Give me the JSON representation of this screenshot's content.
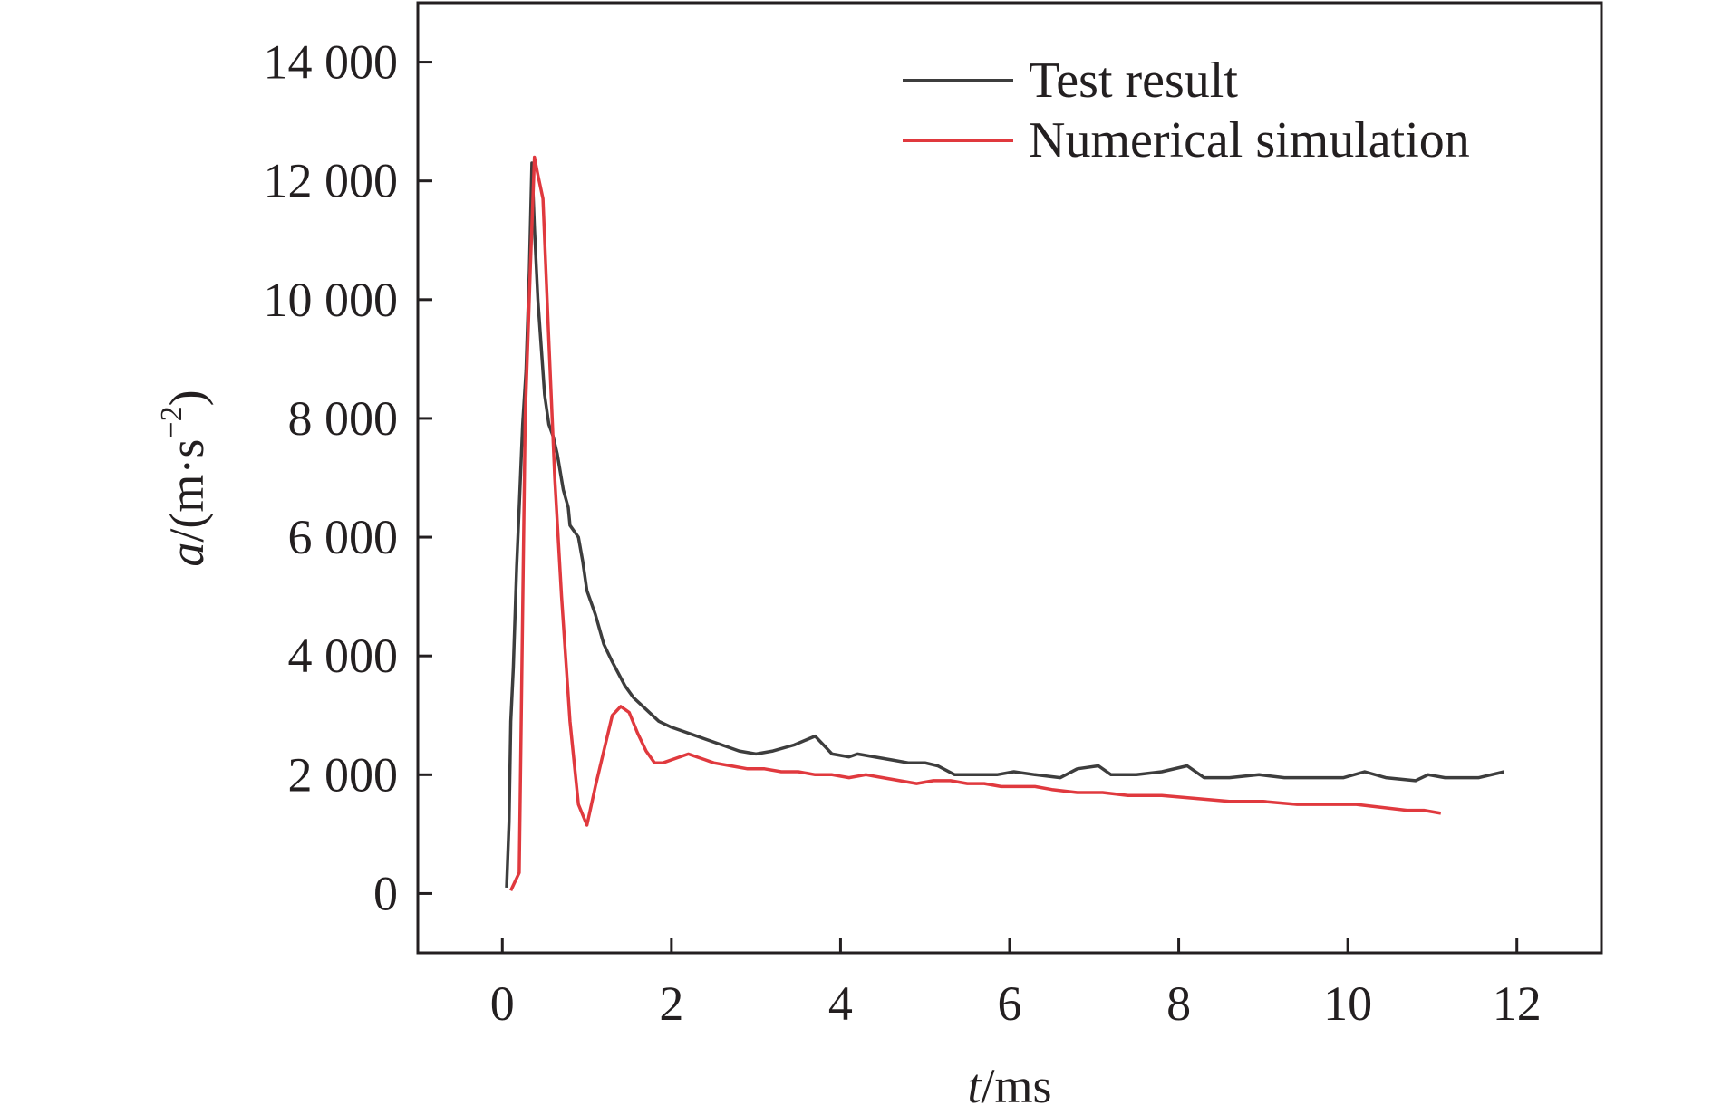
{
  "chart_data": {
    "type": "line",
    "xlabel_italic": "t",
    "xlabel_unit": "/ms",
    "ylabel_italic": "a",
    "ylabel_unit": "/(m·s",
    "ylabel_exp": "−2",
    "ylabel_close": ")",
    "xlim": [
      -1,
      13
    ],
    "ylim": [
      -1000,
      15000
    ],
    "xticks": [
      0,
      2,
      4,
      6,
      8,
      10,
      12
    ],
    "xtick_labels": [
      "0",
      "2",
      "4",
      "6",
      "8",
      "10",
      "12"
    ],
    "yticks": [
      0,
      2000,
      4000,
      6000,
      8000,
      10000,
      12000,
      14000
    ],
    "ytick_labels": [
      "0",
      "2 000",
      "4 000",
      "6 000",
      "8 000",
      "10 000",
      "12 000",
      "14 000"
    ],
    "grid": false,
    "legend_position": "top-right",
    "series": [
      {
        "name": "Test result",
        "color": "#3d3d3d",
        "x": [
          0.05,
          0.08,
          0.1,
          0.13,
          0.17,
          0.2,
          0.24,
          0.28,
          0.32,
          0.35,
          0.38,
          0.42,
          0.46,
          0.5,
          0.55,
          0.6,
          0.65,
          0.72,
          0.78,
          0.8,
          0.9,
          0.95,
          1.0,
          1.1,
          1.2,
          1.3,
          1.45,
          1.55,
          1.7,
          1.85,
          2.0,
          2.2,
          2.4,
          2.6,
          2.8,
          3.0,
          3.2,
          3.45,
          3.7,
          3.9,
          4.1,
          4.2,
          4.4,
          4.6,
          4.8,
          5.0,
          5.15,
          5.35,
          5.6,
          5.85,
          6.05,
          6.3,
          6.6,
          6.8,
          7.05,
          7.2,
          7.5,
          7.8,
          8.1,
          8.3,
          8.6,
          8.95,
          9.25,
          9.55,
          9.95,
          10.2,
          10.45,
          10.8,
          10.95,
          11.15,
          11.55,
          11.85
        ],
        "values": [
          100,
          1200,
          2900,
          3800,
          5500,
          6500,
          7900,
          8800,
          10500,
          12300,
          11200,
          10000,
          9200,
          8400,
          7900,
          7700,
          7400,
          6800,
          6500,
          6200,
          6000,
          5600,
          5100,
          4700,
          4200,
          3900,
          3500,
          3300,
          3100,
          2900,
          2800,
          2700,
          2600,
          2500,
          2400,
          2350,
          2400,
          2500,
          2650,
          2350,
          2300,
          2350,
          2300,
          2250,
          2200,
          2200,
          2150,
          2000,
          2000,
          2000,
          2050,
          2000,
          1950,
          2100,
          2150,
          2000,
          2000,
          2050,
          2150,
          1950,
          1950,
          2000,
          1950,
          1950,
          1950,
          2050,
          1950,
          1900,
          2000,
          1950,
          1950,
          2050
        ]
      },
      {
        "name": "Numerical simulation",
        "color": "#e0393e",
        "x": [
          0.1,
          0.2,
          0.27,
          0.33,
          0.38,
          0.42,
          0.48,
          0.55,
          0.62,
          0.7,
          0.8,
          0.9,
          1.0,
          1.1,
          1.2,
          1.3,
          1.4,
          1.5,
          1.6,
          1.7,
          1.8,
          1.9,
          2.0,
          2.1,
          2.2,
          2.3,
          2.4,
          2.5,
          2.7,
          2.9,
          3.1,
          3.3,
          3.5,
          3.7,
          3.9,
          4.1,
          4.3,
          4.5,
          4.7,
          4.9,
          5.1,
          5.3,
          5.5,
          5.7,
          5.9,
          6.1,
          6.3,
          6.5,
          6.8,
          7.1,
          7.4,
          7.8,
          8.2,
          8.6,
          9.0,
          9.4,
          9.8,
          10.1,
          10.4,
          10.7,
          10.9,
          11.1
        ],
        "values": [
          50,
          350,
          8000,
          10500,
          12400,
          12100,
          11700,
          9300,
          7000,
          5000,
          2900,
          1500,
          1150,
          1800,
          2400,
          3000,
          3150,
          3050,
          2700,
          2400,
          2200,
          2200,
          2250,
          2300,
          2350,
          2300,
          2250,
          2200,
          2150,
          2100,
          2100,
          2050,
          2050,
          2000,
          2000,
          1950,
          2000,
          1950,
          1900,
          1850,
          1900,
          1900,
          1850,
          1850,
          1800,
          1800,
          1800,
          1750,
          1700,
          1700,
          1650,
          1650,
          1600,
          1550,
          1550,
          1500,
          1500,
          1500,
          1450,
          1400,
          1400,
          1350
        ]
      }
    ]
  }
}
